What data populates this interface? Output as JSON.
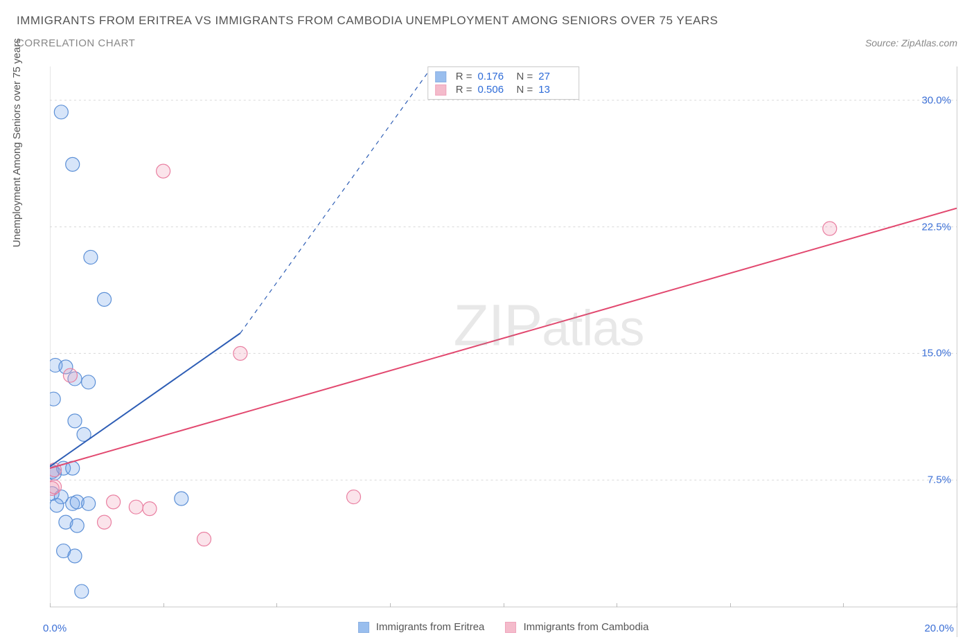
{
  "header": {
    "title": "IMMIGRANTS FROM ERITREA VS IMMIGRANTS FROM CAMBODIA UNEMPLOYMENT AMONG SENIORS OVER 75 YEARS",
    "subtitle": "CORRELATION CHART",
    "source": "Source: ZipAtlas.com"
  },
  "chart": {
    "type": "scatter",
    "ylabel": "Unemployment Among Seniors over 75 years",
    "xlim": [
      0,
      20
    ],
    "ylim": [
      0,
      32
    ],
    "xtick_positions": [
      0,
      2.5,
      5,
      7.5,
      10,
      12.5,
      15,
      17.5,
      20
    ],
    "xtick_labels": {
      "0": "0.0%",
      "20": "20.0%"
    },
    "ytick_positions": [
      7.5,
      15,
      22.5,
      30
    ],
    "ytick_labels": [
      "7.5%",
      "15.0%",
      "22.5%",
      "30.0%"
    ],
    "grid_color": "#d8d8d8",
    "axis_color": "#cccccc",
    "background_color": "#ffffff",
    "watermark": "ZIPatlas",
    "series": [
      {
        "name": "Immigrants from Eritrea",
        "fill": "#6ea3e8",
        "fill_opacity": 0.28,
        "stroke": "#5b8fd6",
        "marker_r": 10,
        "trend": {
          "x1": 0,
          "y1": 8.3,
          "x2": 4.2,
          "y2": 16.2,
          "dash": false,
          "color": "#2d5db5",
          "width": 2,
          "x2_ext": 8.7,
          "y2_ext": 33.0,
          "dash_ext": true
        },
        "stats": {
          "R": "0.176",
          "N": "27"
        },
        "points": [
          [
            0.25,
            29.3
          ],
          [
            0.5,
            26.2
          ],
          [
            0.9,
            20.7
          ],
          [
            1.2,
            18.2
          ],
          [
            0.12,
            14.3
          ],
          [
            0.35,
            14.2
          ],
          [
            0.55,
            13.5
          ],
          [
            0.85,
            13.3
          ],
          [
            0.08,
            12.3
          ],
          [
            0.55,
            11.0
          ],
          [
            0.75,
            10.2
          ],
          [
            0.05,
            8.0
          ],
          [
            0.1,
            7.9
          ],
          [
            0.3,
            8.2
          ],
          [
            0.5,
            8.2
          ],
          [
            0.05,
            6.7
          ],
          [
            0.25,
            6.5
          ],
          [
            0.15,
            6.0
          ],
          [
            0.5,
            6.1
          ],
          [
            0.6,
            6.2
          ],
          [
            0.85,
            6.1
          ],
          [
            2.9,
            6.4
          ],
          [
            0.35,
            5.0
          ],
          [
            0.6,
            4.8
          ],
          [
            0.3,
            3.3
          ],
          [
            0.55,
            3.0
          ],
          [
            0.7,
            0.9
          ]
        ]
      },
      {
        "name": "Immigrants from Cambodia",
        "fill": "#f09fb6",
        "fill_opacity": 0.28,
        "stroke": "#e97ea0",
        "marker_r": 10,
        "trend": {
          "x1": 0,
          "y1": 8.2,
          "x2": 20,
          "y2": 23.6,
          "dash": false,
          "color": "#e2486f",
          "width": 2
        },
        "stats": {
          "R": "0.506",
          "N": "13"
        },
        "points": [
          [
            2.5,
            25.8
          ],
          [
            17.2,
            22.4
          ],
          [
            4.2,
            15.0
          ],
          [
            0.45,
            13.7
          ],
          [
            0.1,
            8.1
          ],
          [
            0.05,
            7.0
          ],
          [
            0.1,
            7.1
          ],
          [
            6.7,
            6.5
          ],
          [
            1.4,
            6.2
          ],
          [
            1.9,
            5.9
          ],
          [
            2.2,
            5.8
          ],
          [
            1.2,
            5.0
          ],
          [
            3.4,
            4.0
          ]
        ]
      }
    ],
    "legend_box": {
      "swatch_size": 16
    }
  }
}
